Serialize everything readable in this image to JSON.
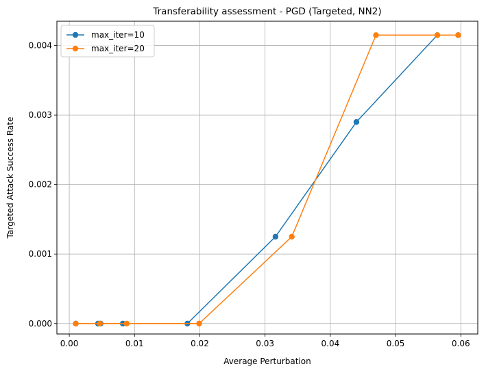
{
  "chart_data": {
    "type": "line",
    "title": "Transferability assessment - PGD (Targeted, NN2)",
    "xlabel": "Average Perturbation",
    "ylabel": "Targeted Attack Success Rate",
    "xlim": [
      -0.0019,
      0.0626
    ],
    "ylim": [
      -0.00015,
      0.00435
    ],
    "xticks": [
      0.0,
      0.01,
      0.02,
      0.03,
      0.04,
      0.05,
      0.06
    ],
    "xtick_labels": [
      "0.00",
      "0.01",
      "0.02",
      "0.03",
      "0.04",
      "0.05",
      "0.06"
    ],
    "yticks": [
      0.0,
      0.001,
      0.002,
      0.003,
      0.004
    ],
    "ytick_labels": [
      "0.000",
      "0.001",
      "0.002",
      "0.003",
      "0.004"
    ],
    "grid": true,
    "legend_position": "top-left",
    "series": [
      {
        "name": "max_iter=10",
        "color": "#1f77b4",
        "x": [
          0.001,
          0.0044,
          0.0048,
          0.0082,
          0.0181,
          0.0316,
          0.044,
          0.0564,
          0.0596
        ],
        "y": [
          0.0,
          0.0,
          0.0,
          0.0,
          0.0,
          0.00125,
          0.0029,
          0.00415,
          0.00415
        ]
      },
      {
        "name": "max_iter=20",
        "color": "#ff7f0e",
        "x": [
          0.001,
          0.0047,
          0.0088,
          0.0199,
          0.0341,
          0.047,
          0.0564,
          0.0596
        ],
        "y": [
          0.0,
          0.0,
          0.0,
          0.0,
          0.00125,
          0.00415,
          0.00415,
          0.00415
        ]
      }
    ]
  }
}
